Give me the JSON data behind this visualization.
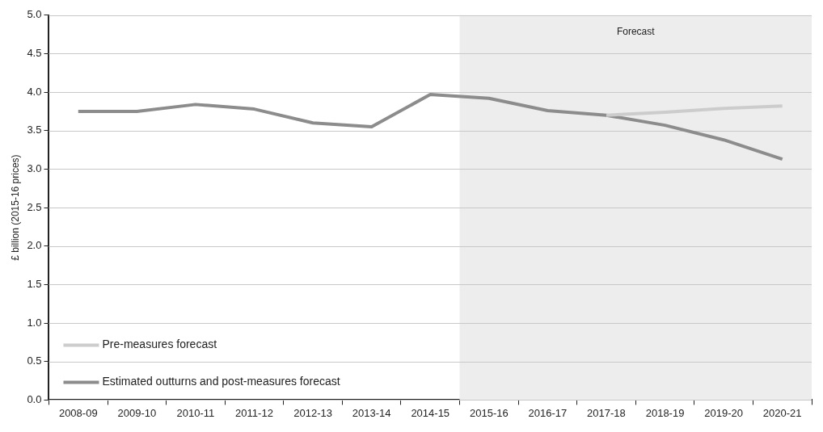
{
  "chart_data": {
    "type": "line",
    "ylabel": "£ billion (2015-16 prices)",
    "categories": [
      "2008-09",
      "2009-10",
      "2010-11",
      "2011-12",
      "2012-13",
      "2013-14",
      "2014-15",
      "2015-16",
      "2016-17",
      "2017-18",
      "2018-19",
      "2019-20",
      "2020-21"
    ],
    "series": [
      {
        "name": "Pre-measures forecast",
        "color": "#cccccc",
        "values": [
          null,
          null,
          null,
          null,
          null,
          null,
          null,
          null,
          null,
          3.7,
          3.74,
          3.79,
          3.82
        ]
      },
      {
        "name": "Estimated outturns and post-measures forecast",
        "color": "#8c8c8c",
        "values": [
          3.75,
          3.75,
          3.84,
          3.78,
          3.6,
          3.55,
          3.97,
          3.92,
          3.76,
          3.7,
          3.57,
          3.38,
          3.13
        ]
      }
    ],
    "bands": [
      {
        "axis": "x",
        "from": "2015-16",
        "to": "2020-21",
        "label": "Forecast",
        "color": "#ededed"
      }
    ],
    "ylim": [
      0,
      5
    ],
    "yticks": [
      {
        "value": 0,
        "label": "0.0"
      },
      0.5,
      {
        "value": 1,
        "label": "1.0"
      },
      1.5,
      {
        "value": 2,
        "label": "2.0"
      },
      2.5,
      {
        "value": 3,
        "label": "3.0"
      },
      3.5,
      {
        "value": 4,
        "label": "4.0"
      },
      4.5,
      {
        "value": 5,
        "label": "5.0"
      }
    ],
    "grid": "y",
    "legend": "bottom left",
    "marker": "none",
    "line_style": "solid"
  }
}
